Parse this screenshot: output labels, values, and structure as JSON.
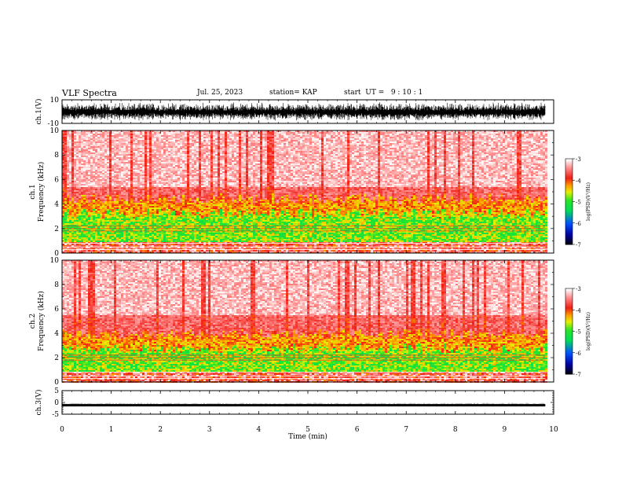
{
  "header": {
    "title": "VLF Spectra",
    "date": "Jul. 25, 2023",
    "station": "station= KAP",
    "start_ut": "start  UT =   9 : 10 : 1"
  },
  "chart_data": [
    {
      "panel": "ch1-waveform",
      "type": "line",
      "ylabel": "ch.1(V)",
      "ylim": [
        -10,
        10
      ],
      "yticks": [
        "10",
        "-10"
      ],
      "xlim": [
        0,
        10
      ],
      "note_series": "dense broadband waveform, amplitude roughly -8 to +8 V across 0–9.8 min"
    },
    {
      "panel": "ch1-spectrogram",
      "type": "heatmap",
      "ylabel": "ch.1\nFrequency (kHz)",
      "ylim": [
        0,
        10
      ],
      "yticks": [
        "0",
        "2",
        "4",
        "6",
        "8",
        "10"
      ],
      "xlim": [
        0,
        10
      ],
      "data_extent_min": 9.83,
      "colorbar": {
        "label": "log(PSD)(V²/Hz)",
        "range": [
          -7,
          -3
        ],
        "ticks": [
          "-3",
          "-4",
          "-5",
          "-6",
          "-7"
        ]
      }
    },
    {
      "panel": "ch2-spectrogram",
      "type": "heatmap",
      "ylabel": "ch.2\nFrequency (kHz)",
      "ylim": [
        0,
        10
      ],
      "yticks": [
        "0",
        "2",
        "4",
        "6",
        "8",
        "10"
      ],
      "xlim": [
        0,
        10
      ],
      "data_extent_min": 9.83,
      "colorbar": {
        "label": "log(PSD)(V²/Hz)",
        "range": [
          -7,
          -3
        ],
        "ticks": [
          "-3",
          "-4",
          "-5",
          "-6",
          "-7"
        ]
      }
    },
    {
      "panel": "ch3-waveform",
      "type": "line",
      "ylabel": "ch.3(V)",
      "ylim": [
        -5,
        5
      ],
      "yticks": [
        "5",
        "0",
        "-5"
      ],
      "xlim": [
        0,
        10
      ],
      "note_series": "thick flat trace near -1 V"
    }
  ],
  "xaxis": {
    "label": "Time (min)",
    "ticks": [
      "0",
      "1",
      "2",
      "3",
      "4",
      "5",
      "6",
      "7",
      "8",
      "9",
      "10"
    ]
  }
}
